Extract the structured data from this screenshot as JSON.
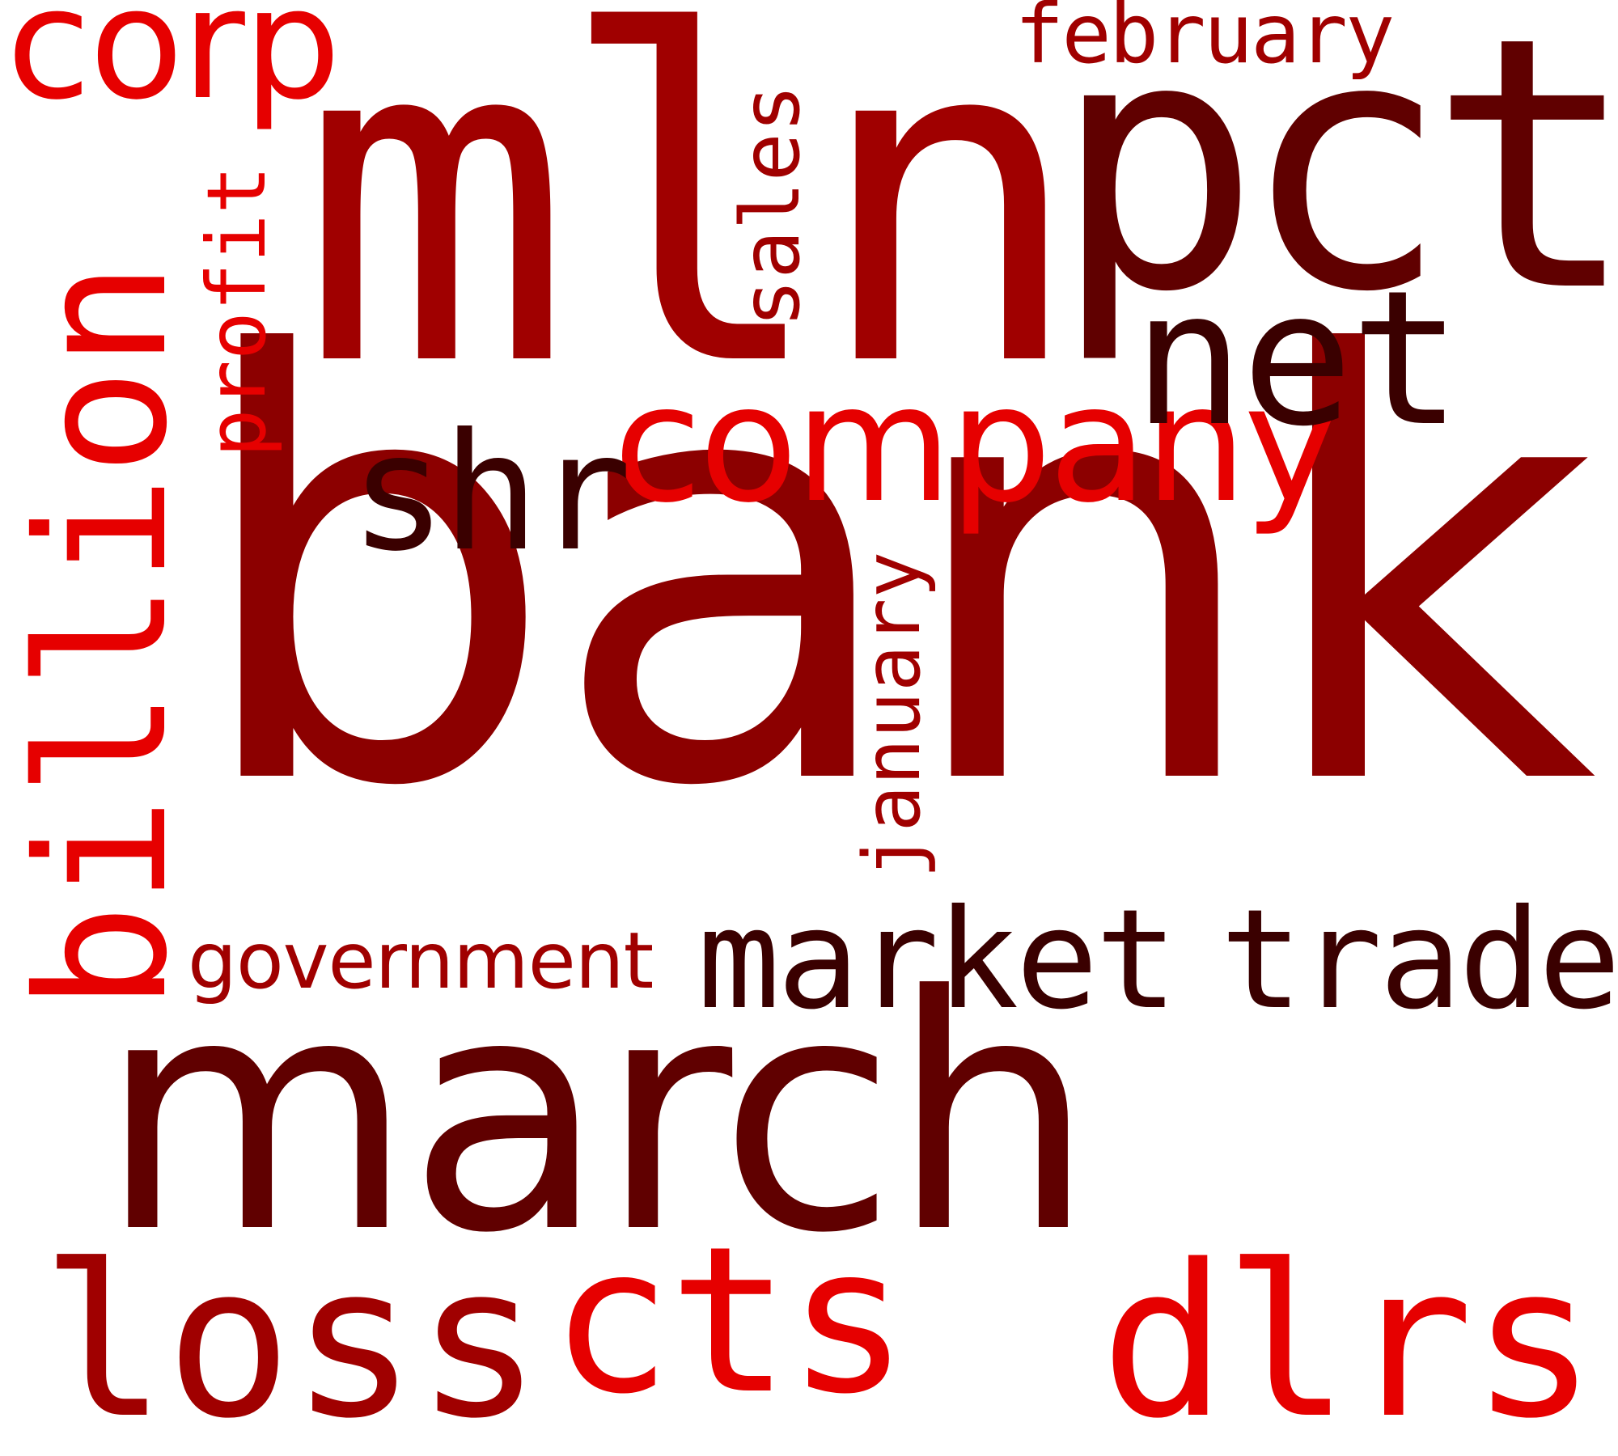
{
  "words": {
    "bank": "bank",
    "mln": "mln",
    "march": "march",
    "pct": "pct",
    "billion": "billion",
    "company": "company",
    "net": "net",
    "shr": "shr",
    "corp": "corp",
    "profit": "profit",
    "sales": "sales",
    "february": "february",
    "january": "january",
    "government": "government",
    "market": "market",
    "trade": "trade",
    "loss": "loss",
    "cts": "cts",
    "dlrs": "dlrs"
  },
  "colors": {
    "bright_red": "#e60000",
    "red": "#a00000",
    "dark_red": "#8c0000",
    "deep_red": "#600000",
    "darkest_red": "#3a0000"
  }
}
